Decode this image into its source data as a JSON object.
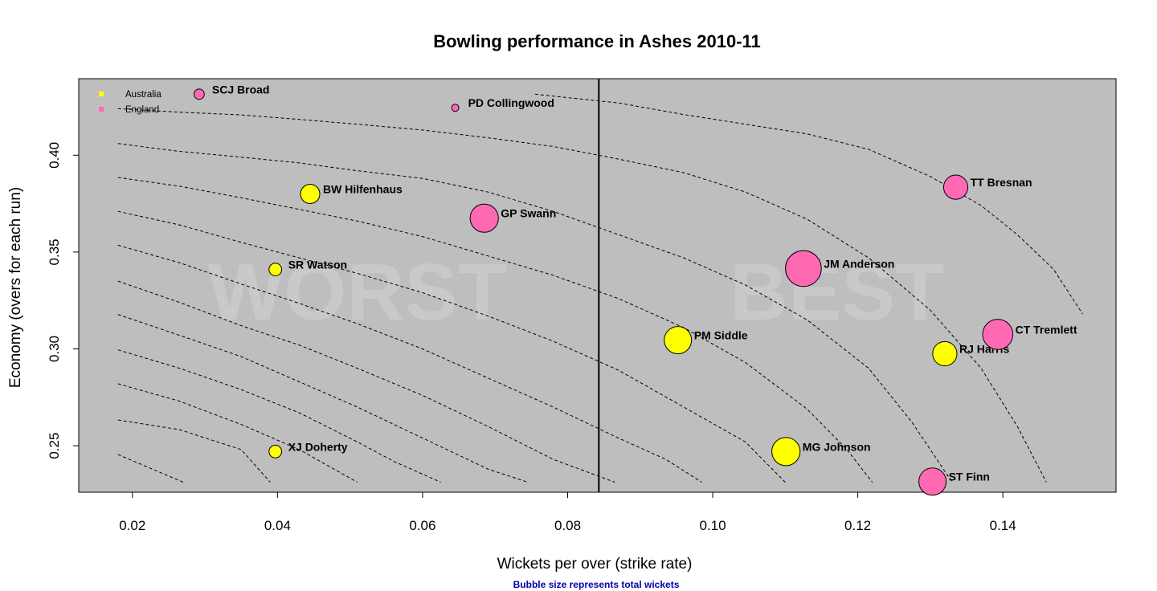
{
  "chart_data": {
    "type": "scatter",
    "title": "Bowling performance in Ashes 2010-11",
    "xlabel": "Wickets per over (strike rate)",
    "ylabel": "Economy (overs for each run)",
    "caption": "Bubble size represents total wickets",
    "xlim": [
      0.0126,
      0.1556
    ],
    "ylim": [
      0.226,
      0.4395
    ],
    "xticks": [
      0.02,
      0.04,
      0.06,
      0.08,
      0.1,
      0.12,
      0.14
    ],
    "xtick_labels": [
      "0.02",
      "0.04",
      "0.06",
      "0.08",
      "0.10",
      "0.12",
      "0.14"
    ],
    "yticks": [
      0.25,
      0.3,
      0.35,
      0.4
    ],
    "ytick_labels": [
      "0.25",
      "0.30",
      "0.35",
      "0.40"
    ],
    "vline_x": 0.0843,
    "watermarks": [
      "WORST",
      "BEST"
    ],
    "legend": [
      {
        "name": "Australia",
        "color": "#ffff00"
      },
      {
        "name": "England",
        "color": "#ff69b4"
      }
    ],
    "legend_placement": "top-left",
    "grid": false,
    "background": "#bebebe",
    "contours": [
      [
        [
          0.018,
          0.2455
        ],
        [
          0.027,
          0.2312
        ]
      ],
      [
        [
          0.018,
          0.2633
        ],
        [
          0.0265,
          0.2583
        ],
        [
          0.035,
          0.248
        ],
        [
          0.039,
          0.2312
        ]
      ],
      [
        [
          0.018,
          0.282
        ],
        [
          0.0265,
          0.273
        ],
        [
          0.035,
          0.261
        ],
        [
          0.043,
          0.248
        ],
        [
          0.051,
          0.2312
        ]
      ],
      [
        [
          0.018,
          0.2995
        ],
        [
          0.0265,
          0.29
        ],
        [
          0.035,
          0.279
        ],
        [
          0.043,
          0.267
        ],
        [
          0.051,
          0.252
        ],
        [
          0.056,
          0.242
        ],
        [
          0.0625,
          0.2312
        ]
      ],
      [
        [
          0.018,
          0.3178
        ],
        [
          0.0265,
          0.307
        ],
        [
          0.035,
          0.296
        ],
        [
          0.043,
          0.283
        ],
        [
          0.051,
          0.27
        ],
        [
          0.06,
          0.254
        ],
        [
          0.069,
          0.238
        ],
        [
          0.0745,
          0.2312
        ]
      ],
      [
        [
          0.018,
          0.335
        ],
        [
          0.0265,
          0.324
        ],
        [
          0.035,
          0.312
        ],
        [
          0.043,
          0.302
        ],
        [
          0.051,
          0.29
        ],
        [
          0.06,
          0.276
        ],
        [
          0.069,
          0.26
        ],
        [
          0.078,
          0.243
        ],
        [
          0.0865,
          0.2312
        ]
      ],
      [
        [
          0.018,
          0.3535
        ],
        [
          0.0265,
          0.3445
        ],
        [
          0.035,
          0.3335
        ],
        [
          0.043,
          0.3235
        ],
        [
          0.051,
          0.313
        ],
        [
          0.06,
          0.3
        ],
        [
          0.069,
          0.285
        ],
        [
          0.078,
          0.27
        ],
        [
          0.087,
          0.254
        ],
        [
          0.0935,
          0.243
        ],
        [
          0.0985,
          0.2312
        ]
      ],
      [
        [
          0.018,
          0.371
        ],
        [
          0.0265,
          0.364
        ],
        [
          0.035,
          0.355
        ],
        [
          0.043,
          0.347
        ],
        [
          0.051,
          0.339
        ],
        [
          0.06,
          0.329
        ],
        [
          0.069,
          0.317
        ],
        [
          0.078,
          0.304
        ],
        [
          0.087,
          0.289
        ],
        [
          0.096,
          0.27
        ],
        [
          0.1045,
          0.252
        ],
        [
          0.11,
          0.2312
        ]
      ],
      [
        [
          0.018,
          0.3885
        ],
        [
          0.0265,
          0.384
        ],
        [
          0.035,
          0.378
        ],
        [
          0.043,
          0.372
        ],
        [
          0.051,
          0.366
        ],
        [
          0.06,
          0.358
        ],
        [
          0.069,
          0.348
        ],
        [
          0.078,
          0.338
        ],
        [
          0.087,
          0.326
        ],
        [
          0.096,
          0.311
        ],
        [
          0.1045,
          0.293
        ],
        [
          0.113,
          0.269
        ],
        [
          0.1185,
          0.248
        ],
        [
          0.122,
          0.2312
        ]
      ],
      [
        [
          0.018,
          0.406
        ],
        [
          0.0265,
          0.402
        ],
        [
          0.035,
          0.399
        ],
        [
          0.043,
          0.396
        ],
        [
          0.051,
          0.392
        ],
        [
          0.06,
          0.388
        ],
        [
          0.069,
          0.381
        ],
        [
          0.078,
          0.371
        ],
        [
          0.087,
          0.359
        ],
        [
          0.096,
          0.347
        ],
        [
          0.1045,
          0.333
        ],
        [
          0.113,
          0.315
        ],
        [
          0.1215,
          0.29
        ],
        [
          0.1275,
          0.262
        ],
        [
          0.133,
          0.2312
        ]
      ],
      [
        [
          0.018,
          0.424
        ],
        [
          0.0265,
          0.4222
        ],
        [
          0.035,
          0.4208
        ],
        [
          0.043,
          0.4185
        ],
        [
          0.051,
          0.416
        ],
        [
          0.06,
          0.413
        ],
        [
          0.069,
          0.409
        ],
        [
          0.078,
          0.4045
        ],
        [
          0.087,
          0.398
        ],
        [
          0.096,
          0.391
        ],
        [
          0.1045,
          0.381
        ],
        [
          0.113,
          0.367
        ],
        [
          0.1215,
          0.347
        ],
        [
          0.13,
          0.32
        ],
        [
          0.137,
          0.29
        ],
        [
          0.142,
          0.26
        ],
        [
          0.146,
          0.2312
        ]
      ],
      [
        [
          0.0755,
          0.4315
        ],
        [
          0.087,
          0.427
        ],
        [
          0.096,
          0.421
        ],
        [
          0.1045,
          0.416
        ],
        [
          0.113,
          0.411
        ],
        [
          0.1215,
          0.403
        ],
        [
          0.13,
          0.389
        ],
        [
          0.137,
          0.374
        ],
        [
          0.142,
          0.359
        ],
        [
          0.147,
          0.341
        ],
        [
          0.151,
          0.318
        ]
      ]
    ],
    "series": [
      {
        "name": "Australia",
        "color": "#ffff00",
        "points": [
          {
            "label": "BW Hilfenhaus",
            "x": 0.0445,
            "y": 0.38,
            "wickets": 7
          },
          {
            "label": "SR Watson",
            "x": 0.0397,
            "y": 0.341,
            "wickets": 3
          },
          {
            "label": "XJ Doherty",
            "x": 0.0397,
            "y": 0.247,
            "wickets": 3
          },
          {
            "label": "PM Siddle",
            "x": 0.0952,
            "y": 0.3045,
            "wickets": 14
          },
          {
            "label": "MG Johnson",
            "x": 0.1101,
            "y": 0.247,
            "wickets": 15
          },
          {
            "label": "RJ Harris",
            "x": 0.132,
            "y": 0.2975,
            "wickets": 11
          }
        ]
      },
      {
        "name": "England",
        "color": "#ff69b4",
        "points": [
          {
            "label": "SCJ Broad",
            "x": 0.0292,
            "y": 0.4315,
            "wickets": 2
          },
          {
            "label": "PD Collingwood",
            "x": 0.0645,
            "y": 0.4245,
            "wickets": 1
          },
          {
            "label": "GP Swann",
            "x": 0.0685,
            "y": 0.3675,
            "wickets": 15
          },
          {
            "label": "TT Bresnan",
            "x": 0.1335,
            "y": 0.3835,
            "wickets": 11
          },
          {
            "label": "JM Anderson",
            "x": 0.1125,
            "y": 0.3415,
            "wickets": 24
          },
          {
            "label": "CT Tremlett",
            "x": 0.1393,
            "y": 0.3075,
            "wickets": 17
          },
          {
            "label": "ST Finn",
            "x": 0.1303,
            "y": 0.2315,
            "wickets": 14
          }
        ]
      }
    ]
  }
}
